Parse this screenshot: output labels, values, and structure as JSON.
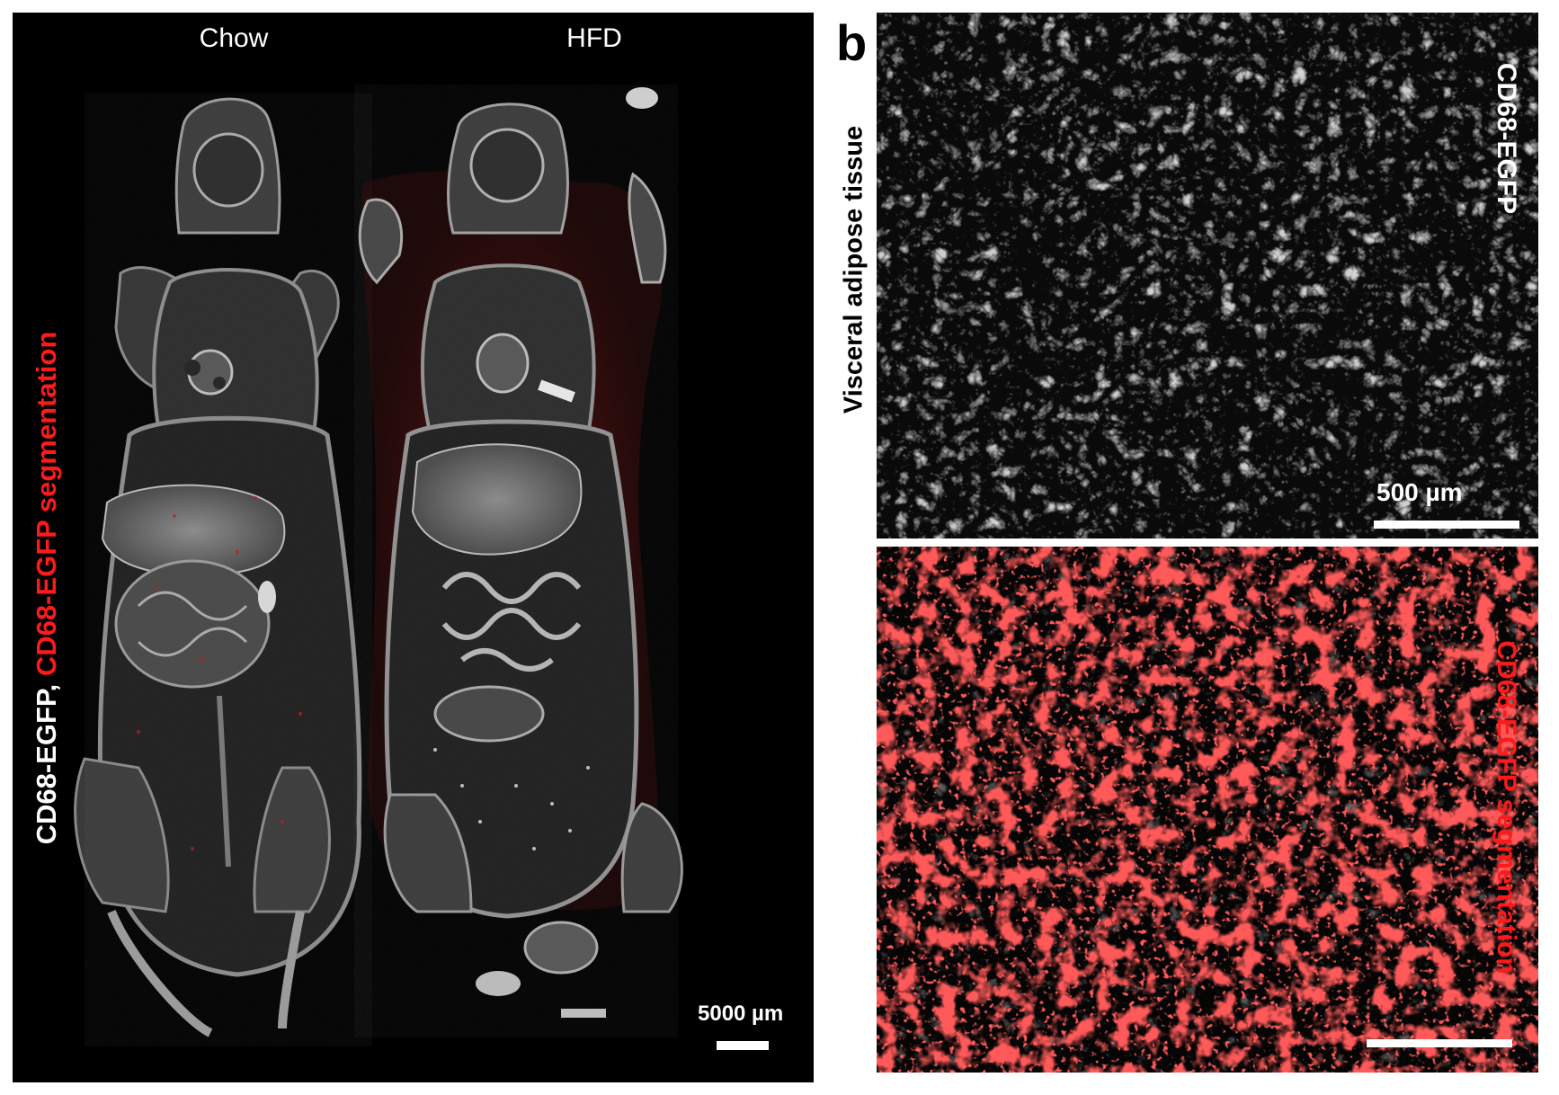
{
  "panel_a": {
    "column_labels": [
      "Chow",
      "HFD"
    ],
    "vertical_label_white": "CD68-EGFP, ",
    "vertical_label_red": "CD68-EGFP segmentation",
    "scale_bar_text": "5000 µm"
  },
  "panel_b": {
    "letter": "b",
    "tissue_label": "Visceral adipose tissue",
    "top_label": "CD68-EGFP",
    "top_scale_bar_text": "500 µm",
    "bottom_label": "CD68-EGFP segmentation"
  },
  "colors": {
    "background": "#000000",
    "segmentation": "#ff1a1a",
    "signal": "#ffffff"
  }
}
